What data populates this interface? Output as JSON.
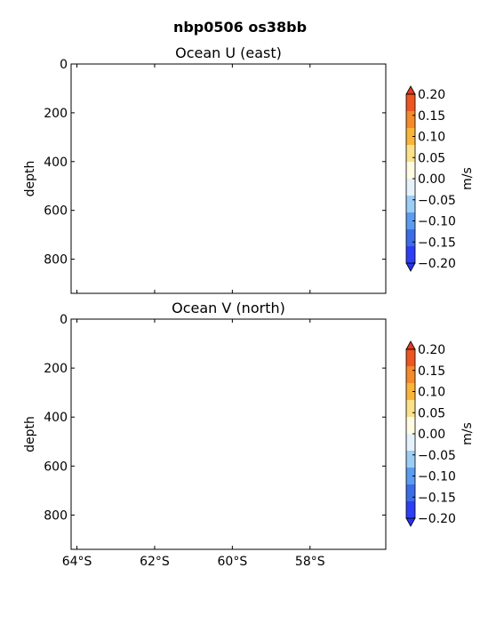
{
  "figure": {
    "suptitle": "nbp0506 os38bb"
  },
  "colors": {
    "levels": [
      "#2e3ef4",
      "#3c6de6",
      "#5b9cf0",
      "#9ccdf5",
      "#e6f2fb",
      "#fffbe1",
      "#fde08a",
      "#f9b53a",
      "#f48a2a",
      "#ec5622"
    ],
    "under": "#2434ee",
    "over": "#e43a1c"
  },
  "chart_data": [
    {
      "type": "heatmap",
      "title": "Ocean U (east)",
      "xlabel": "",
      "ylabel": "depth",
      "ylim": [
        940,
        0
      ],
      "yticks": [
        0,
        200,
        400,
        600,
        800
      ],
      "ytick_labels": [
        "0",
        "200",
        "400",
        "600",
        "800"
      ],
      "xlim": [
        -64.15,
        -56.05
      ],
      "xticks": [
        -64,
        -62,
        -60,
        -58
      ],
      "xtick_labels": [],
      "values": [],
      "colorbar": {
        "label": "m/s",
        "levels": [
          -0.2,
          -0.15,
          -0.1,
          -0.05,
          0.0,
          0.05,
          0.1,
          0.15,
          0.2
        ],
        "tick_labels": [
          "0.20",
          "0.15",
          "0.10",
          "0.05",
          "0.00",
          "−0.05",
          "−0.10",
          "−0.15",
          "−0.20"
        ]
      }
    },
    {
      "type": "heatmap",
      "title": "Ocean V (north)",
      "xlabel": "",
      "ylabel": "depth",
      "ylim": [
        940,
        0
      ],
      "yticks": [
        0,
        200,
        400,
        600,
        800
      ],
      "ytick_labels": [
        "0",
        "200",
        "400",
        "600",
        "800"
      ],
      "xlim": [
        -64.15,
        -56.05
      ],
      "xticks": [
        -64,
        -62,
        -60,
        -58
      ],
      "xtick_labels": [
        "64°S",
        "62°S",
        "60°S",
        "58°S"
      ],
      "values": [],
      "colorbar": {
        "label": "m/s",
        "levels": [
          -0.2,
          -0.15,
          -0.1,
          -0.05,
          0.0,
          0.05,
          0.1,
          0.15,
          0.2
        ],
        "tick_labels": [
          "0.20",
          "0.15",
          "0.10",
          "0.05",
          "0.00",
          "−0.05",
          "−0.10",
          "−0.15",
          "−0.20"
        ]
      }
    }
  ]
}
